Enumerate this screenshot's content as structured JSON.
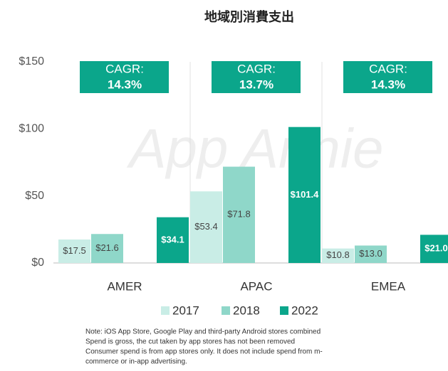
{
  "chart_data": {
    "type": "bar",
    "title": "地域別消費支出",
    "watermark": "App Annie",
    "categories": [
      "AMER",
      "APAC",
      "EMEA"
    ],
    "series": [
      {
        "name": "2017",
        "color": "#c9ede6",
        "values": [
          17.5,
          53.4,
          10.8
        ],
        "value_labels": [
          "$17.5",
          "$53.4",
          "$10.8"
        ]
      },
      {
        "name": "2018",
        "color": "#8fd7c9",
        "values": [
          21.6,
          71.8,
          13.0
        ],
        "value_labels": [
          "$21.6",
          "$71.8",
          "$13.0"
        ]
      },
      {
        "name": "2022",
        "color": "#0ba68b",
        "values": [
          34.1,
          101.4,
          21.0
        ],
        "value_labels": [
          "$34.1",
          "$101.4",
          "$21.0"
        ]
      }
    ],
    "annotations": [
      {
        "label": "CAGR:",
        "value": "14.3%"
      },
      {
        "label": "CAGR:",
        "value": "13.7%"
      },
      {
        "label": "CAGR:",
        "value": "14.3%"
      }
    ],
    "ylim": [
      0,
      150
    ],
    "yticks": [
      {
        "value": 0,
        "label": "$0"
      },
      {
        "value": 50,
        "label": "$50"
      },
      {
        "value": 100,
        "label": "$100"
      },
      {
        "value": 150,
        "label": "$150"
      }
    ],
    "grid": false,
    "note": [
      "Note: iOS App Store, Google Play and third-party Android stores combined",
      "Spend is gross, the cut taken by app stores has not been removed",
      "Consumer spend is from app stores only. It does not include spend from m-",
      "commerce or in-app advertising."
    ]
  }
}
